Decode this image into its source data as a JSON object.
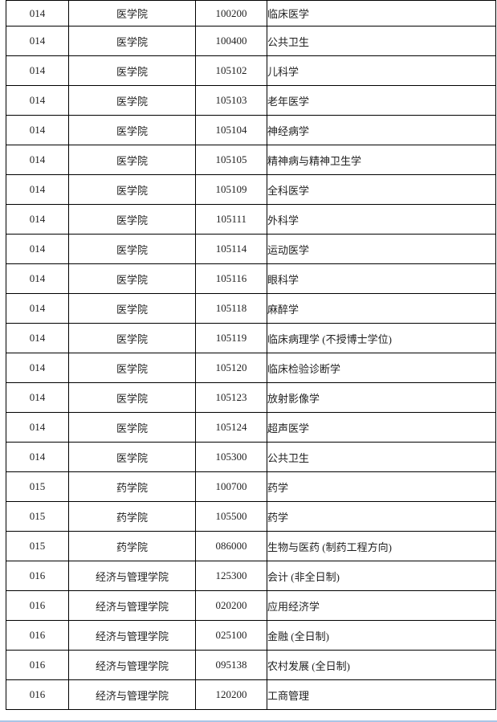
{
  "colors": {
    "background": "#ffffff",
    "table_border": "#000000",
    "text": "#1f1f1f",
    "bottom_edge_line": "#a9c5e6"
  },
  "table": {
    "rows": [
      {
        "dept_code": "014",
        "dept_name": "医学院",
        "major_code": "100200",
        "major_name": "临床医学"
      },
      {
        "dept_code": "014",
        "dept_name": "医学院",
        "major_code": "100400",
        "major_name": "公共卫生"
      },
      {
        "dept_code": "014",
        "dept_name": "医学院",
        "major_code": "105102",
        "major_name": "儿科学"
      },
      {
        "dept_code": "014",
        "dept_name": "医学院",
        "major_code": "105103",
        "major_name": "老年医学"
      },
      {
        "dept_code": "014",
        "dept_name": "医学院",
        "major_code": "105104",
        "major_name": "神经病学"
      },
      {
        "dept_code": "014",
        "dept_name": "医学院",
        "major_code": "105105",
        "major_name": "精神病与精神卫生学"
      },
      {
        "dept_code": "014",
        "dept_name": "医学院",
        "major_code": "105109",
        "major_name": "全科医学"
      },
      {
        "dept_code": "014",
        "dept_name": "医学院",
        "major_code": "105111",
        "major_name": "外科学"
      },
      {
        "dept_code": "014",
        "dept_name": "医学院",
        "major_code": "105114",
        "major_name": "运动医学"
      },
      {
        "dept_code": "014",
        "dept_name": "医学院",
        "major_code": "105116",
        "major_name": "眼科学"
      },
      {
        "dept_code": "014",
        "dept_name": "医学院",
        "major_code": "105118",
        "major_name": "麻醉学"
      },
      {
        "dept_code": "014",
        "dept_name": "医学院",
        "major_code": "105119",
        "major_name": "临床病理学 (不授博士学位)"
      },
      {
        "dept_code": "014",
        "dept_name": "医学院",
        "major_code": "105120",
        "major_name": "临床检验诊断学"
      },
      {
        "dept_code": "014",
        "dept_name": "医学院",
        "major_code": "105123",
        "major_name": "放射影像学"
      },
      {
        "dept_code": "014",
        "dept_name": "医学院",
        "major_code": "105124",
        "major_name": "超声医学"
      },
      {
        "dept_code": "014",
        "dept_name": "医学院",
        "major_code": "105300",
        "major_name": "公共卫生"
      },
      {
        "dept_code": "015",
        "dept_name": "药学院",
        "major_code": "100700",
        "major_name": "药学"
      },
      {
        "dept_code": "015",
        "dept_name": "药学院",
        "major_code": "105500",
        "major_name": "药学"
      },
      {
        "dept_code": "015",
        "dept_name": "药学院",
        "major_code": "086000",
        "major_name": "生物与医药 (制药工程方向)"
      },
      {
        "dept_code": "016",
        "dept_name": "经济与管理学院",
        "major_code": "125300",
        "major_name": "会计 (非全日制)"
      },
      {
        "dept_code": "016",
        "dept_name": "经济与管理学院",
        "major_code": "020200",
        "major_name": "应用经济学"
      },
      {
        "dept_code": "016",
        "dept_name": "经济与管理学院",
        "major_code": "025100",
        "major_name": "金融 (全日制)"
      },
      {
        "dept_code": "016",
        "dept_name": "经济与管理学院",
        "major_code": "095138",
        "major_name": "农村发展 (全日制)"
      },
      {
        "dept_code": "016",
        "dept_name": "经济与管理学院",
        "major_code": "120200",
        "major_name": "工商管理"
      }
    ]
  }
}
